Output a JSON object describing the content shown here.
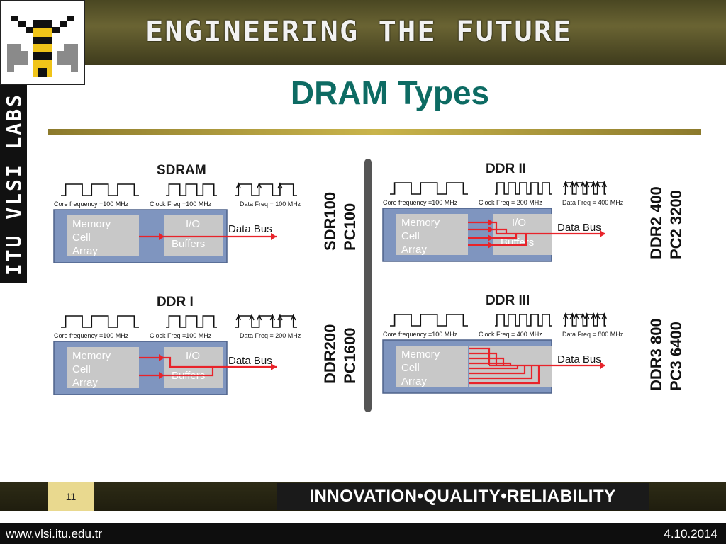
{
  "header": {
    "banner_text": "ENGINEERING THE FUTURE",
    "side_text": "ITU VLSI LABS",
    "title": "DRAM Types"
  },
  "diagram": {
    "colors": {
      "panel": "#7f95bf",
      "box": "#c8c8c8",
      "box_text": "#ffffff",
      "signal": "#e8232a",
      "label": "#1a1a1a"
    },
    "panels": [
      {
        "title": "SDRAM",
        "core_freq": "Core frequency =100 MHz",
        "clock_freq": "Clock Freq =100 MHz",
        "data_freq": "Data Freq = 100 MHz",
        "memory_box": "Memory\nCell\nArray",
        "io_box": "I/O\nBuffers",
        "bus_label": "Data Bus",
        "side_label_1": "SDR100",
        "side_label_2": "PC100"
      },
      {
        "title": "DDR II",
        "core_freq": "Core frequency =100 MHz",
        "clock_freq": "Clock Freq = 200 MHz",
        "data_freq": "Data Freq = 400 MHz",
        "memory_box": "Memory\nCell\nArray",
        "io_box": "I/O\nBuffers",
        "bus_label": "Data Bus",
        "side_label_1": "DDR2 400",
        "side_label_2": "PC2 3200"
      },
      {
        "title": "DDR I",
        "core_freq": "Core frequency =100 MHz",
        "clock_freq": "Clock Freq =100 MHz",
        "data_freq": "Data Freq = 200 MHz",
        "memory_box": "Memory\nCell\nArray",
        "io_box": "I/O\nBuffers",
        "bus_label": "Data Bus",
        "side_label_1": "DDR200",
        "side_label_2": "PC1600"
      },
      {
        "title": "DDR III",
        "core_freq": "Core frequency =100 MHz",
        "clock_freq": "Clock Freq = 400 MHz",
        "data_freq": "Data Freq = 800 MHz",
        "memory_box": "Memory\nCell\nArray",
        "io_box": "",
        "bus_label": "Data Bus",
        "side_label_1": "DDR3 800",
        "side_label_2": "PC3 6400"
      }
    ]
  },
  "footer": {
    "page_number": "11",
    "slogan": "INNOVATION•QUALITY•RELIABILITY",
    "url": "www.vlsi.itu.edu.tr",
    "date": "4.10.2014"
  }
}
